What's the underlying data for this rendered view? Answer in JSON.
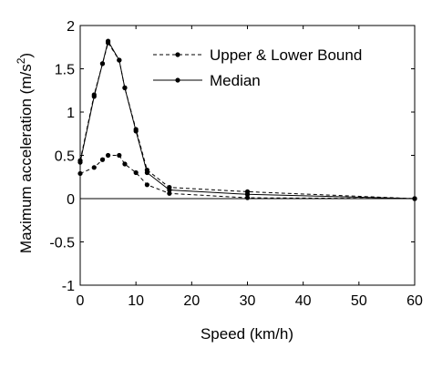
{
  "chart_data": {
    "type": "line",
    "title": "",
    "xlabel": "Speed (km/h)",
    "ylabel_main": "Maximum acceleration (m/s",
    "ylabel_sup": "2",
    "ylabel_close": ")",
    "xlim": [
      0,
      60
    ],
    "ylim": [
      -1,
      2
    ],
    "xticks": [
      0,
      10,
      20,
      30,
      40,
      50,
      60
    ],
    "yticks": [
      -1,
      -0.5,
      0,
      0.5,
      1,
      1.5,
      2
    ],
    "xtick_labels": [
      "0",
      "10",
      "20",
      "30",
      "40",
      "50",
      "60"
    ],
    "ytick_labels": [
      "-1",
      "-0.5",
      "0",
      "0.5",
      "1",
      "1.5",
      "2"
    ],
    "grid": false,
    "zero_line": true,
    "legend_position": "top-right",
    "series": [
      {
        "name": "Upper & Lower Bound",
        "style": "dashed",
        "lines": [
          {
            "x": [
              0,
              2.5,
              4,
              5,
              7,
              8,
              10,
              12,
              16,
              30,
              60
            ],
            "y": [
              0.44,
              1.2,
              1.56,
              1.8,
              1.6,
              1.28,
              0.8,
              0.33,
              0.13,
              0.08,
              0
            ]
          },
          {
            "x": [
              0,
              2.5,
              4,
              5,
              7,
              8,
              10,
              12,
              16,
              30,
              60
            ],
            "y": [
              0.29,
              0.36,
              0.45,
              0.5,
              0.5,
              0.4,
              0.3,
              0.16,
              0.06,
              0.01,
              0
            ]
          }
        ]
      },
      {
        "name": "Median",
        "style": "solid",
        "lines": [
          {
            "x": [
              0,
              2.5,
              4,
              5,
              7,
              8,
              10,
              12,
              16,
              30,
              60
            ],
            "y": [
              0.42,
              1.18,
              1.56,
              1.82,
              1.6,
              1.28,
              0.78,
              0.3,
              0.1,
              0.05,
              0
            ]
          }
        ]
      }
    ]
  }
}
